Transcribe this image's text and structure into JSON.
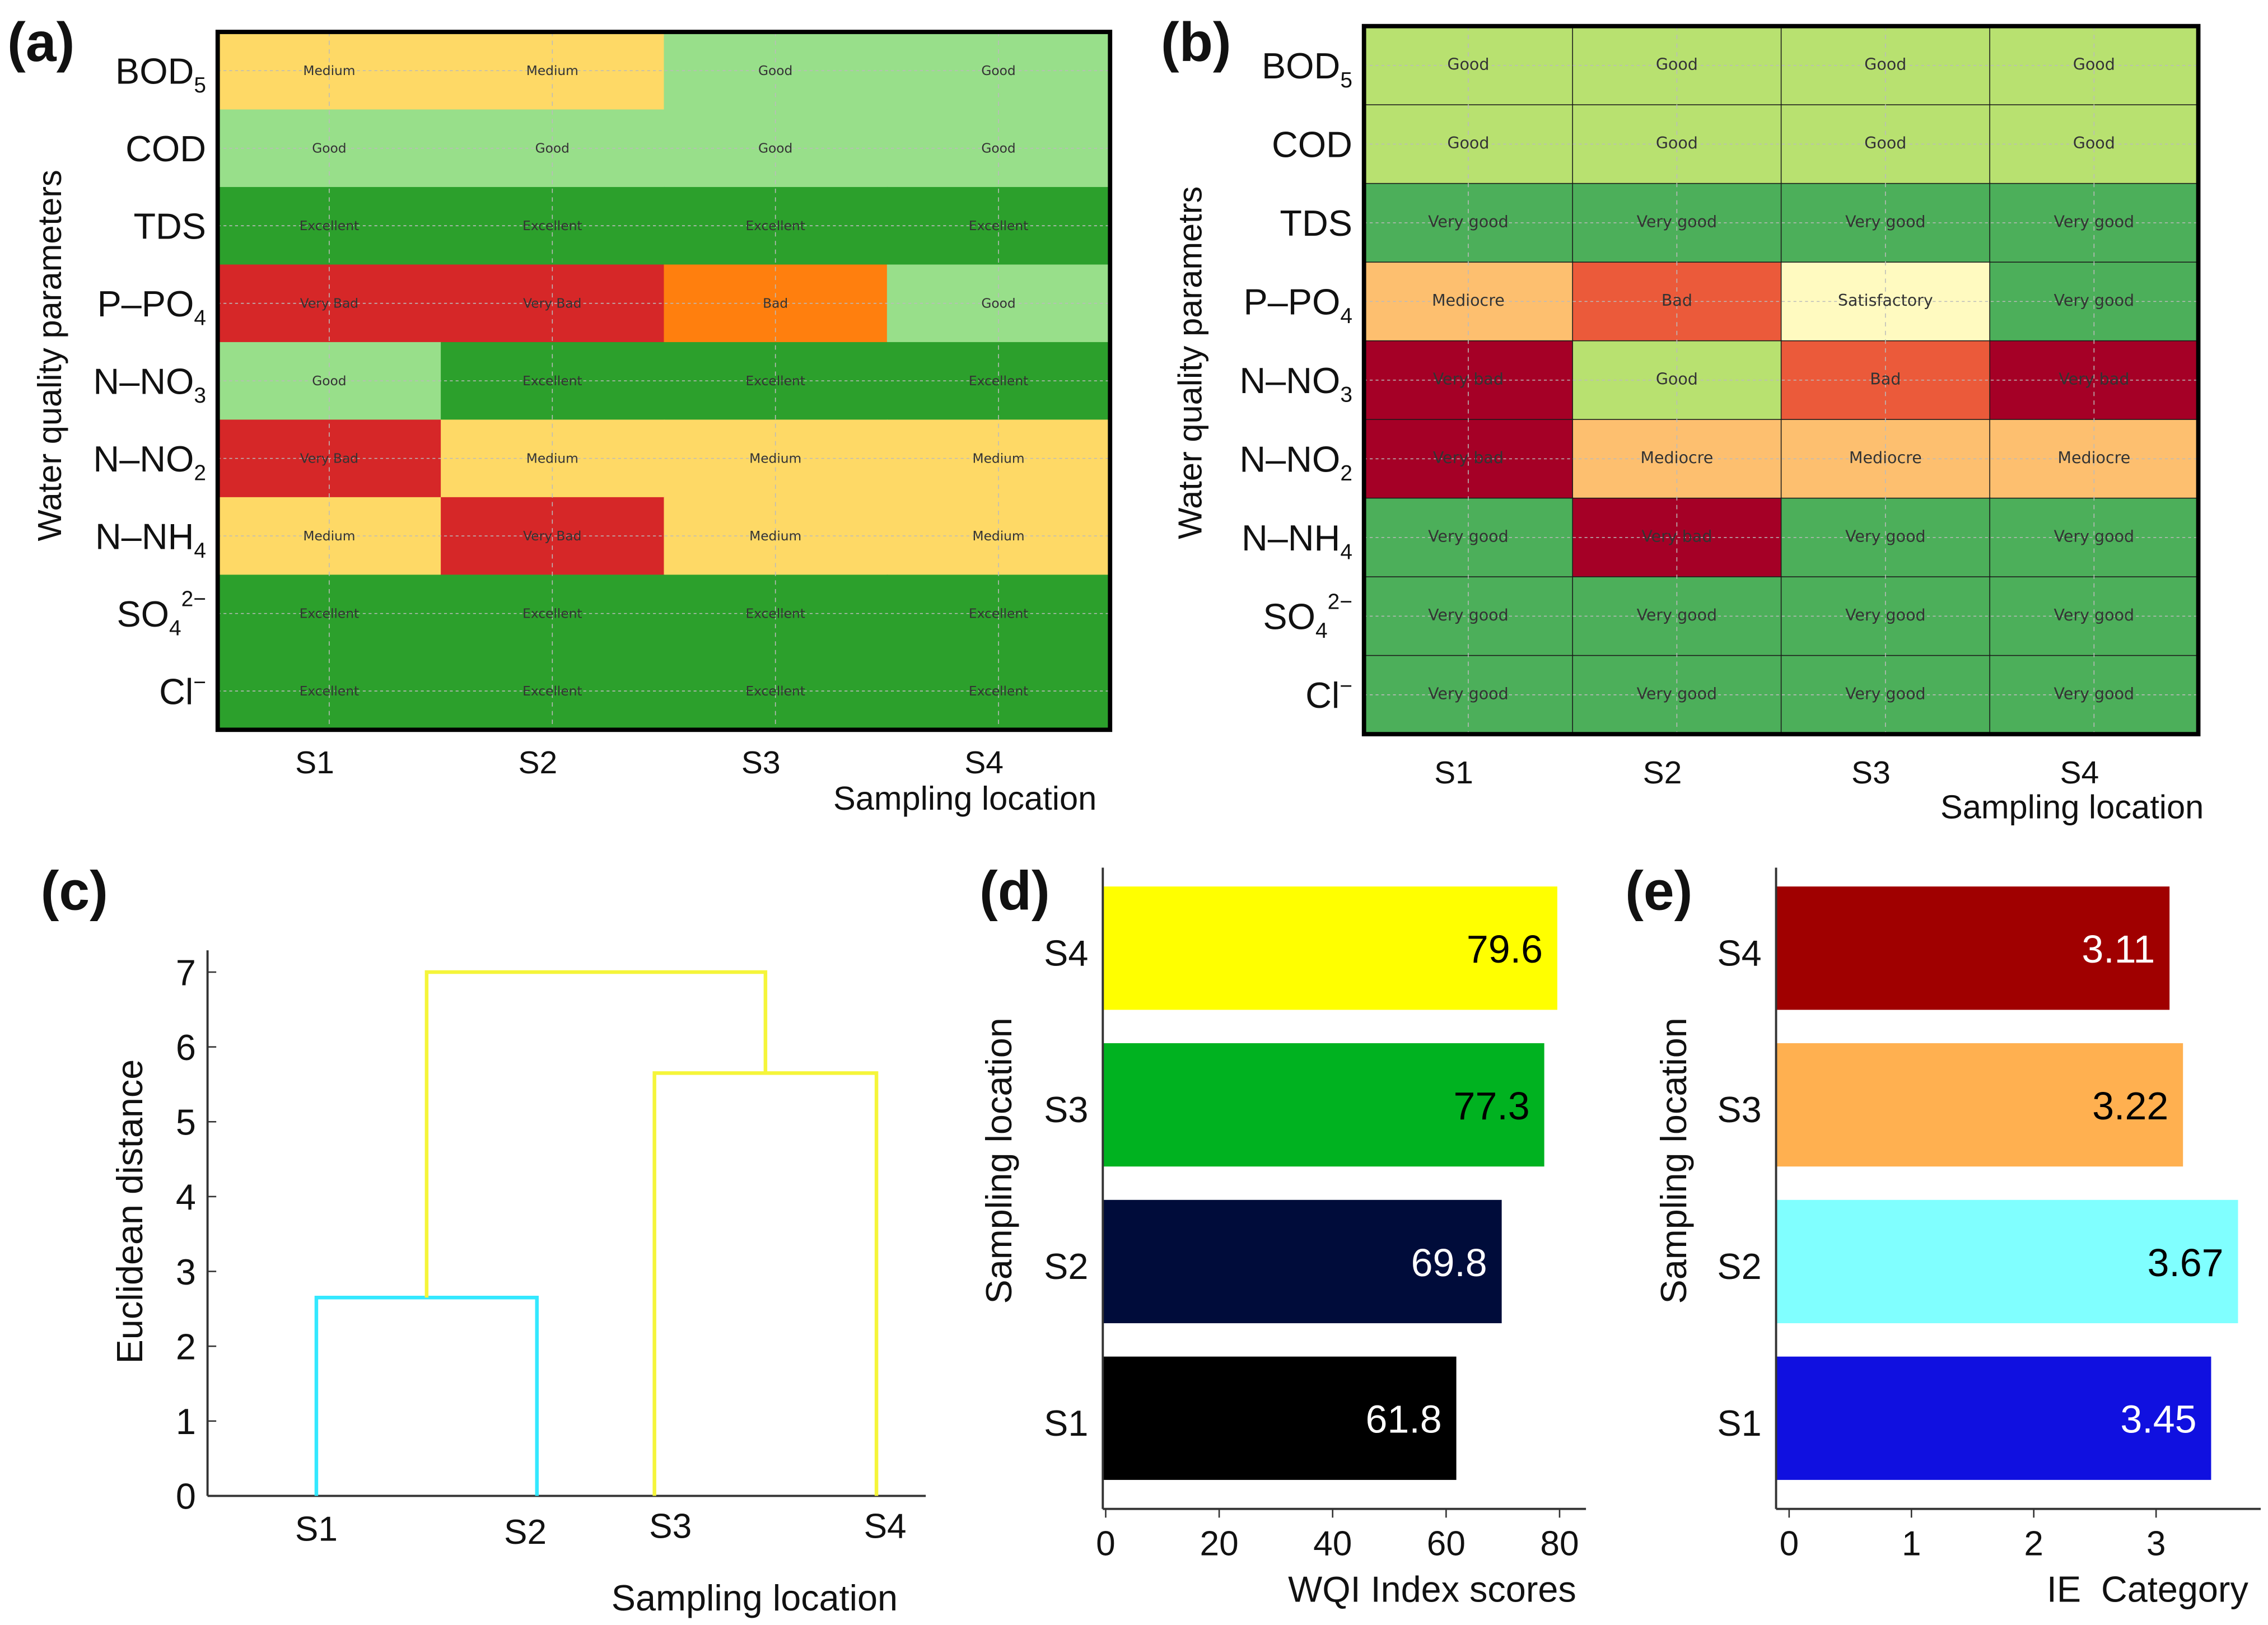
{
  "chart_data": [
    {
      "panel": "(a)",
      "type": "heatmap",
      "xlabel": "Sampling location",
      "ylabel": "Water quality parameters",
      "columns": [
        "S1",
        "S2",
        "S3",
        "S4"
      ],
      "rows": [
        {
          "base": "BOD",
          "sub": "5",
          "sup": ""
        },
        {
          "base": "COD",
          "sub": "",
          "sup": ""
        },
        {
          "base": "TDS",
          "sub": "",
          "sup": ""
        },
        {
          "base": "P–PO",
          "sub": "4",
          "sup": ""
        },
        {
          "base": "N–NO",
          "sub": "3",
          "sup": ""
        },
        {
          "base": "N–NO",
          "sub": "2",
          "sup": ""
        },
        {
          "base": "N–NH",
          "sub": "4",
          "sup": ""
        },
        {
          "base": "SO",
          "sub": "4",
          "sup": "2−"
        },
        {
          "base": "Cl",
          "sub": "",
          "sup": "−"
        }
      ],
      "values": [
        [
          "Medium",
          "Medium",
          "Good",
          "Good"
        ],
        [
          "Good",
          "Good",
          "Good",
          "Good"
        ],
        [
          "Excellent",
          "Excellent",
          "Excellent",
          "Excellent"
        ],
        [
          "Very Bad",
          "Very Bad",
          "Bad",
          "Good"
        ],
        [
          "Good",
          "Excellent",
          "Excellent",
          "Excellent"
        ],
        [
          "Very Bad",
          "Medium",
          "Medium",
          "Medium"
        ],
        [
          "Medium",
          "Very Bad",
          "Medium",
          "Medium"
        ],
        [
          "Excellent",
          "Excellent",
          "Excellent",
          "Excellent"
        ],
        [
          "Excellent",
          "Excellent",
          "Excellent",
          "Excellent"
        ]
      ],
      "colors": {
        "Medium": "#fed966",
        "Good": "#98df8a",
        "Excellent": "#2ca02c",
        "Very Bad": "#d62728",
        "Bad": "#ff7f0e"
      }
    },
    {
      "panel": "(b)",
      "type": "heatmap",
      "xlabel": "Sampling location",
      "ylabel": "Water quality parametrs",
      "columns": [
        "S1",
        "S2",
        "S3",
        "S4"
      ],
      "rows": [
        {
          "base": "BOD",
          "sub": "5",
          "sup": ""
        },
        {
          "base": "COD",
          "sub": "",
          "sup": ""
        },
        {
          "base": "TDS",
          "sub": "",
          "sup": ""
        },
        {
          "base": "P–PO",
          "sub": "4",
          "sup": ""
        },
        {
          "base": "N–NO",
          "sub": "3",
          "sup": ""
        },
        {
          "base": "N–NO",
          "sub": "2",
          "sup": ""
        },
        {
          "base": "N–NH",
          "sub": "4",
          "sup": ""
        },
        {
          "base": "SO",
          "sub": "4",
          "sup": "2−"
        },
        {
          "base": "Cl",
          "sub": "",
          "sup": "−"
        }
      ],
      "values": [
        [
          "Good",
          "Good",
          "Good",
          "Good"
        ],
        [
          "Good",
          "Good",
          "Good",
          "Good"
        ],
        [
          "Very good",
          "Very good",
          "Very good",
          "Very good"
        ],
        [
          "Mediocre",
          "Bad",
          "Satisfactory",
          "Very good"
        ],
        [
          "Very bad",
          "Good",
          "Bad",
          "Very bad"
        ],
        [
          "Very bad",
          "Mediocre",
          "Mediocre",
          "Mediocre"
        ],
        [
          "Very good",
          "Very bad",
          "Very good",
          "Very good"
        ],
        [
          "Very good",
          "Very good",
          "Very good",
          "Very good"
        ],
        [
          "Very good",
          "Very good",
          "Very good",
          "Very good"
        ]
      ],
      "colors": {
        "Good": "#b8e170",
        "Very good": "#4caf5a",
        "Mediocre": "#fdbf6f",
        "Bad": "#eb5a3a",
        "Satisfactory": "#fffac0",
        "Very bad": "#a50026"
      }
    },
    {
      "panel": "(c)",
      "type": "dendrogram",
      "xlabel": "Sampling location",
      "ylabel": "Euclidean distance",
      "leaves": [
        "S1",
        "S2",
        "S3",
        "S4"
      ],
      "merges": [
        {
          "left": "S1",
          "right": "S2",
          "height": 2.65,
          "color": "#33e8ff"
        },
        {
          "left": "S3",
          "right": "S4",
          "height": 5.65,
          "color": "#f5f53a"
        },
        {
          "left": "S1-S2",
          "right": "S3-S4",
          "height": 7.0,
          "color": "#f5f53a"
        }
      ],
      "ylim": [
        0,
        7
      ],
      "yticks": [
        0,
        1,
        2,
        3,
        4,
        5,
        6,
        7
      ]
    },
    {
      "panel": "(d)",
      "type": "bar",
      "orientation": "horizontal",
      "xlabel": "WQI Index scores",
      "ylabel": "Sampling location",
      "categories": [
        "S1",
        "S2",
        "S3",
        "S4"
      ],
      "values": [
        61.8,
        69.8,
        77.3,
        79.6
      ],
      "labels": [
        "61.8",
        "69.8",
        "77.3",
        "79.6"
      ],
      "colors": [
        "#000000",
        "#000c3a",
        "#00b220",
        "#ffff00"
      ],
      "label_colors": [
        "#ffffff",
        "#ffffff",
        "#000000",
        "#000000"
      ],
      "xlim": [
        0,
        85
      ],
      "xticks": [
        0,
        20,
        40,
        60,
        80
      ]
    },
    {
      "panel": "(e)",
      "type": "bar",
      "orientation": "horizontal",
      "xlabel": "IE  Category",
      "ylabel": "Sampling location",
      "categories": [
        "S1",
        "S2",
        "S3",
        "S4"
      ],
      "values": [
        3.45,
        3.67,
        3.22,
        3.11
      ],
      "labels": [
        "3.45",
        "3.67",
        "3.22",
        "3.11"
      ],
      "colors": [
        "#1010e0",
        "#80ffff",
        "#ffb050",
        "#a00000"
      ],
      "label_colors": [
        "#ffffff",
        "#000000",
        "#000000",
        "#ffffff"
      ],
      "xlim": [
        0,
        3.9
      ],
      "xticks": [
        0,
        1,
        2,
        3
      ]
    }
  ]
}
